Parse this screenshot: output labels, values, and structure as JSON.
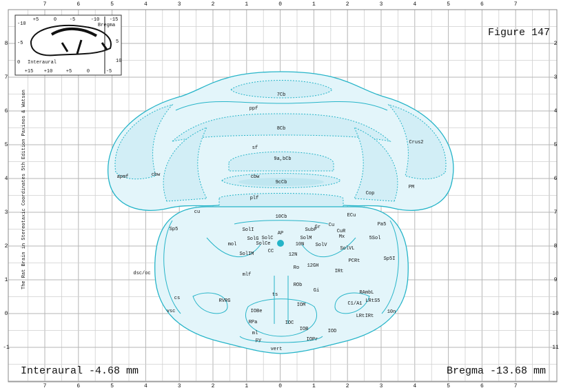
{
  "header": {
    "figure": "Figure 147",
    "side_text": "The Rat Brain in Stereotaxic Coordinates  5th Edition  Paxinos & Watson",
    "interaural": "Interaural -4.68 mm",
    "bregma": "Bregma -13.68 mm"
  },
  "axes": {
    "top": [
      7,
      6,
      5,
      4,
      3,
      2,
      1,
      0,
      1,
      2,
      3,
      4,
      5,
      6,
      7
    ],
    "bottom": [
      7,
      6,
      5,
      4,
      3,
      2,
      1,
      0,
      1,
      2,
      3,
      4,
      5,
      6,
      7
    ],
    "left": [
      8,
      7,
      6,
      5,
      4,
      3,
      2,
      1,
      0,
      -1
    ],
    "right": [
      2,
      3,
      4,
      5,
      6,
      7,
      8,
      9,
      10,
      11
    ]
  },
  "inset": {
    "top_labels": [
      "+5",
      "0",
      "-5",
      "-10",
      "-15"
    ],
    "bottom_labels": [
      "+15",
      "+10",
      "+5",
      "0",
      "-5"
    ],
    "left_labels": [
      "-10",
      "-5",
      "0"
    ],
    "right_labels": [
      "5",
      "10"
    ],
    "bregma": "Bregma",
    "interaural": "Interaural"
  },
  "structures": [
    "7Cb",
    "ppf",
    "8Cb",
    "Crus2",
    "sf",
    "9a,bCb",
    "apmf",
    "cbw",
    "cbw",
    "9cCb",
    "PM",
    "Cop",
    "plf",
    "10Cb",
    "cu",
    "ECu",
    "Pa5",
    "Sp5",
    "SolI",
    "SubP",
    "Gr",
    "AP",
    "Cu",
    "CuR",
    "SolG",
    "SolC",
    "SolCe",
    "SolM",
    "10N",
    "SolV",
    "Mx",
    "5Sol",
    "SolVL",
    "mol",
    "SolIM",
    "CC",
    "12N",
    "PCRt",
    "Sp5I",
    "12GH",
    "Ro",
    "IRt",
    "dsc/oc",
    "mlf",
    "ROb",
    "Gi",
    "RVRG",
    "RAmbL",
    "LRtS5",
    "ts",
    "IOM",
    "C1/A1",
    "cs",
    "vsc",
    "10n",
    "LRt",
    "IRt",
    "IOBe",
    "RPa",
    "IOC",
    "IOB",
    "IOD",
    "ml",
    "py",
    "IOPr",
    "vert"
  ]
}
